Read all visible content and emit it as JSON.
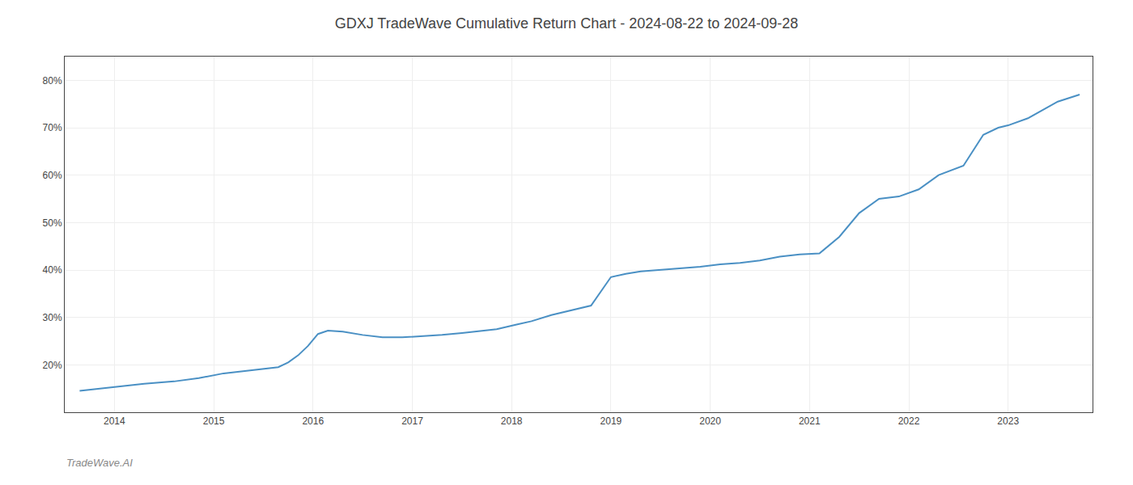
{
  "chart_data": {
    "type": "line",
    "title": "GDXJ TradeWave Cumulative Return Chart - 2024-08-22 to 2024-09-28",
    "annotations": [
      "TradeWave.AI"
    ],
    "x": [
      2013.65,
      2013.85,
      2014.1,
      2014.3,
      2014.6,
      2014.85,
      2015.1,
      2015.35,
      2015.55,
      2015.65,
      2015.75,
      2015.85,
      2015.95,
      2016.05,
      2016.15,
      2016.3,
      2016.5,
      2016.7,
      2016.9,
      2017.1,
      2017.3,
      2017.5,
      2017.65,
      2017.85,
      2018.05,
      2018.2,
      2018.4,
      2018.6,
      2018.8,
      2019.0,
      2019.15,
      2019.3,
      2019.5,
      2019.7,
      2019.9,
      2020.1,
      2020.3,
      2020.5,
      2020.7,
      2020.9,
      2021.1,
      2021.3,
      2021.5,
      2021.7,
      2021.9,
      2022.1,
      2022.3,
      2022.55,
      2022.75,
      2022.9,
      2023.0,
      2023.2,
      2023.5,
      2023.72
    ],
    "values": [
      14.5,
      15.0,
      15.5,
      16.0,
      16.5,
      17.2,
      18.2,
      18.8,
      19.2,
      19.5,
      20.5,
      22.0,
      24.0,
      26.5,
      27.2,
      27.0,
      26.3,
      25.8,
      25.8,
      26.0,
      26.3,
      26.7,
      27.0,
      27.5,
      28.5,
      29.2,
      30.5,
      31.5,
      32.5,
      38.5,
      39.2,
      39.7,
      40.0,
      40.3,
      40.7,
      41.2,
      41.5,
      42.0,
      42.8,
      43.3,
      43.5,
      47.0,
      52.0,
      55.0,
      55.5,
      57.0,
      60.0,
      62.0,
      68.5,
      70.0,
      70.5,
      72.0,
      75.5,
      77.0
    ],
    "color": "#4a90c4",
    "xlim": [
      2013.5,
      2023.85
    ],
    "xticks": [
      2014,
      2015,
      2016,
      2017,
      2018,
      2019,
      2020,
      2021,
      2022,
      2023
    ],
    "ylim": [
      10,
      85
    ],
    "yticks": [
      {
        "value": 20,
        "label": "20%"
      },
      {
        "value": 30,
        "label": "30%"
      },
      {
        "value": 40,
        "label": "40%"
      },
      {
        "value": 50,
        "label": "50%"
      },
      {
        "value": 60,
        "label": "60%"
      },
      {
        "value": 70,
        "label": "70%"
      },
      {
        "value": 80,
        "label": "80%"
      }
    ],
    "grid": true
  }
}
